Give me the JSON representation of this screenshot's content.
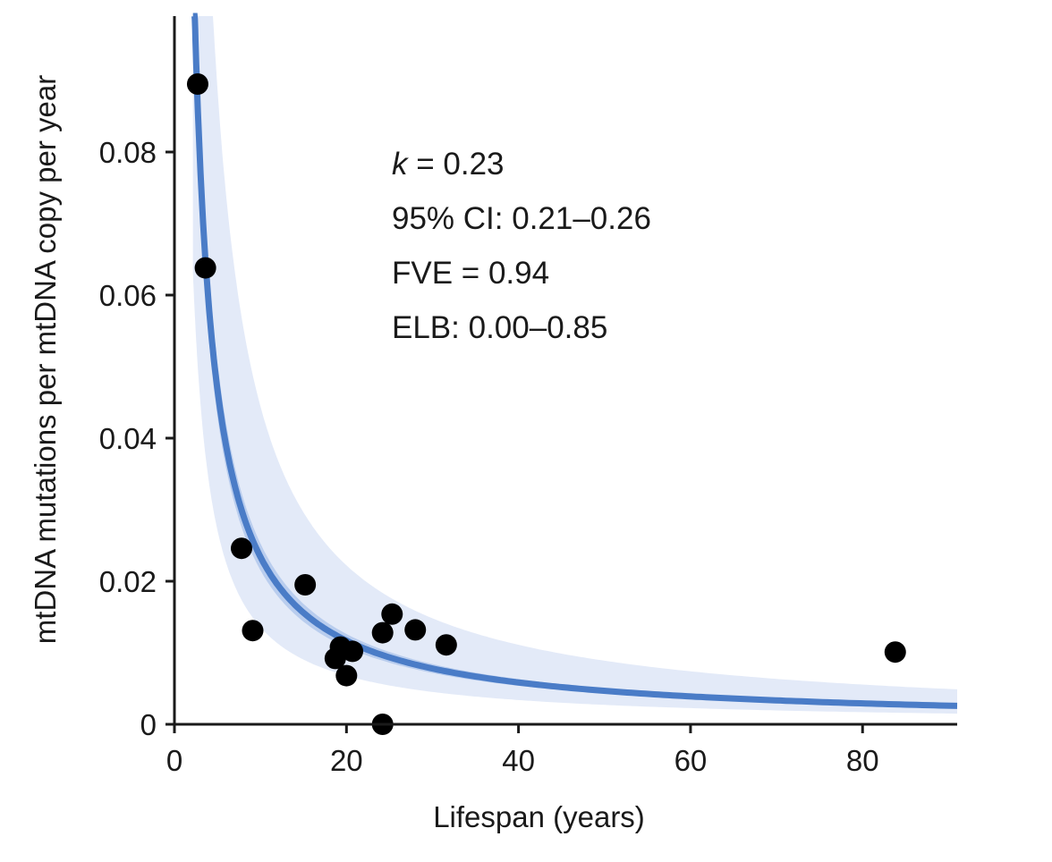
{
  "chart_data": {
    "type": "scatter",
    "xlabel": "Lifespan (years)",
    "ylabel": "mtDNA mutations per mtDNA copy per year",
    "xlim": [
      0,
      91
    ],
    "ylim": [
      0,
      0.099
    ],
    "x_ticks": [
      0,
      20,
      40,
      60,
      80
    ],
    "x_tick_labels": [
      "0",
      "20",
      "40",
      "60",
      "80"
    ],
    "y_ticks": [
      0,
      0.02,
      0.04,
      0.06,
      0.08
    ],
    "y_tick_labels": [
      "0",
      "0.02",
      "0.04",
      "0.06",
      "0.08"
    ],
    "grid": false,
    "colors": {
      "points": "#000000",
      "fit_line": "#4a7cc7",
      "band_outer": "#e3eaf8",
      "band_inner": "#b9cdee",
      "axes": "#1a1a1a"
    },
    "points": [
      {
        "x": 2.7,
        "y": 0.0895
      },
      {
        "x": 3.6,
        "y": 0.0638
      },
      {
        "x": 7.8,
        "y": 0.0246
      },
      {
        "x": 9.1,
        "y": 0.0131
      },
      {
        "x": 15.2,
        "y": 0.0195
      },
      {
        "x": 18.7,
        "y": 0.0092
      },
      {
        "x": 19.3,
        "y": 0.0108
      },
      {
        "x": 20.0,
        "y": 0.0068
      },
      {
        "x": 20.7,
        "y": 0.0102
      },
      {
        "x": 24.2,
        "y": 0.0128
      },
      {
        "x": 25.3,
        "y": 0.0154
      },
      {
        "x": 28.0,
        "y": 0.0132
      },
      {
        "x": 31.6,
        "y": 0.0111
      },
      {
        "x": 24.2,
        "y": 0.0
      },
      {
        "x": 83.8,
        "y": 0.0101
      }
    ],
    "fit": {
      "x_start": 2.15,
      "x_end": 91,
      "inner_band_halfwidth_fraction": 0.08,
      "outer_band_lower_factor": 0.58,
      "outer_band_upper_factor": 1.9
    },
    "annotations": {
      "k_symbol": "k",
      "k_value": " = 0.23",
      "ci": "95% CI: 0.21–0.26",
      "fve": "FVE = 0.94",
      "elb": "ELB: 0.00–0.85"
    }
  }
}
